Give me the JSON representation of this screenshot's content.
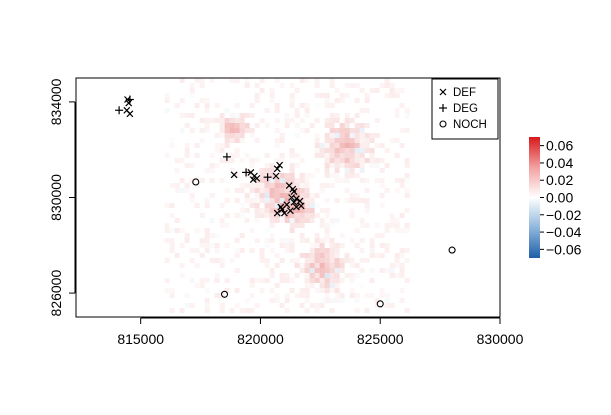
{
  "chart_data": {
    "type": "scatter",
    "title": "",
    "xlabel": "",
    "ylabel": "",
    "xlim": [
      812300,
      830000
    ],
    "ylim": [
      825000,
      835000
    ],
    "x_ticks": [
      815000,
      820000,
      825000,
      830000
    ],
    "y_ticks": [
      826000,
      830000,
      834000
    ],
    "x_tick_labels": [
      "815000",
      "820000",
      "825000",
      "830000"
    ],
    "y_tick_labels": [
      "826000",
      "830000",
      "834000"
    ],
    "raster": {
      "description_hidden": true,
      "xlim": [
        816000,
        826200
      ],
      "ylim": [
        825200,
        835000
      ],
      "colorbar": {
        "range": [
          -0.07,
          0.07
        ],
        "ticks": [
          0.06,
          0.04,
          0.02,
          0.0,
          -0.02,
          -0.04,
          -0.06
        ],
        "tick_labels": [
          "0.06",
          "0.04",
          "0.02",
          "0.00",
          "−0.02",
          "−0.04",
          "−0.06"
        ],
        "colors": [
          "#1f5fa8",
          "#ffffff",
          "#d7191c"
        ]
      }
    },
    "legend": {
      "position": "top-right",
      "entries": [
        {
          "symbol": "x",
          "label": "DEF"
        },
        {
          "symbol": "+",
          "label": "DEG"
        },
        {
          "symbol": "o",
          "label": "NOCH"
        }
      ]
    },
    "series": [
      {
        "name": "DEF",
        "symbol": "x",
        "points": [
          [
            814450,
            834100
          ],
          [
            814500,
            833950
          ],
          [
            814420,
            833650
          ],
          [
            814550,
            833500
          ],
          [
            818900,
            830950
          ],
          [
            819600,
            831050
          ],
          [
            819750,
            830900
          ],
          [
            819850,
            830800
          ],
          [
            819700,
            830750
          ],
          [
            820700,
            831200
          ],
          [
            820800,
            831350
          ],
          [
            820650,
            830900
          ],
          [
            821200,
            830500
          ],
          [
            821350,
            830350
          ],
          [
            821400,
            830250
          ],
          [
            821300,
            830000
          ],
          [
            821500,
            829950
          ],
          [
            821650,
            829850
          ],
          [
            821700,
            829650
          ],
          [
            821500,
            829600
          ],
          [
            821100,
            829700
          ],
          [
            820900,
            829500
          ],
          [
            820700,
            829350
          ],
          [
            821000,
            829350
          ],
          [
            821250,
            829450
          ],
          [
            821400,
            829800
          ],
          [
            820850,
            829600
          ]
        ]
      },
      {
        "name": "DEG",
        "symbol": "+",
        "points": [
          [
            814550,
            834100
          ],
          [
            814100,
            833650
          ],
          [
            818600,
            831700
          ],
          [
            820300,
            830850
          ],
          [
            819400,
            831050
          ]
        ]
      },
      {
        "name": "NOCH",
        "symbol": "o",
        "points": [
          [
            817300,
            830650
          ],
          [
            828000,
            827800
          ],
          [
            818500,
            825950
          ],
          [
            825000,
            825550
          ]
        ]
      }
    ]
  }
}
